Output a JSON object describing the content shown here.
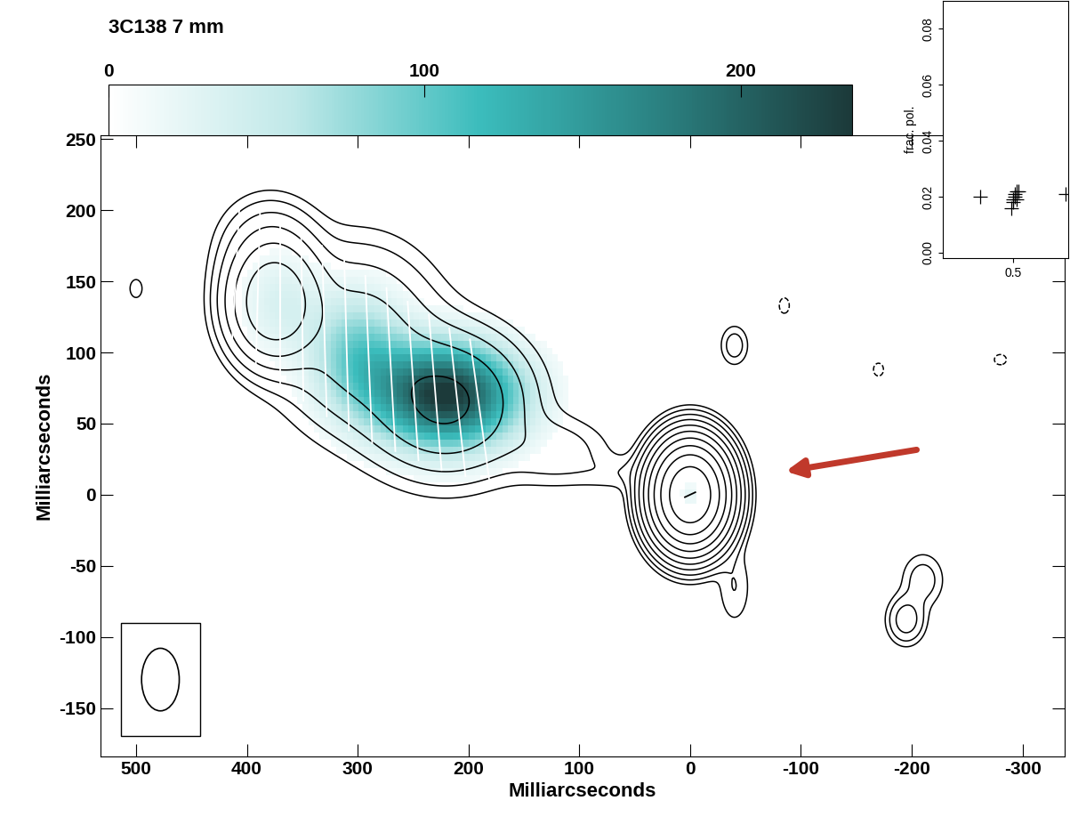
{
  "chart_data": [
    {
      "type": "contour",
      "title": "3C138 7 mm",
      "xlabel": "Milliarcseconds",
      "ylabel": "Milliarcseconds",
      "xlim": [
        532,
        -338
      ],
      "ylim": [
        -184,
        253
      ],
      "xticks": [
        500,
        400,
        300,
        200,
        100,
        0,
        -100,
        -200,
        -300
      ],
      "yticks": [
        -150,
        -100,
        -50,
        0,
        50,
        100,
        150,
        200,
        250
      ],
      "components": [
        {
          "x": 0,
          "y": 0,
          "sigma_x": 16,
          "sigma_y": 17,
          "peak": 1000
        },
        {
          "x": -40,
          "y": -65,
          "sigma_x": 10,
          "sigma_y": 18,
          "peak": 2
        },
        {
          "x": 375,
          "y": 135,
          "sigma_x": 22,
          "sigma_y": 22,
          "peak": 60
        },
        {
          "x": 300,
          "y": 110,
          "sigma_x": 40,
          "sigma_y": 35,
          "peak": 12
        },
        {
          "x": 220,
          "y": 65,
          "sigma_x": 40,
          "sigma_y": 28,
          "peak": 18
        },
        {
          "x": 380,
          "y": 175,
          "sigma_x": 25,
          "sigma_y": 20,
          "peak": 6
        },
        {
          "x": 120,
          "y": 30,
          "sigma_x": 30,
          "sigma_y": 15,
          "peak": 3
        },
        {
          "x": 60,
          "y": 15,
          "sigma_x": 25,
          "sigma_y": 8,
          "peak": 1.5
        },
        {
          "x": -40,
          "y": 105,
          "sigma_x": 8,
          "sigma_y": 9,
          "peak": 3
        },
        {
          "x": 500,
          "y": 145,
          "sigma_x": 6,
          "sigma_y": 7,
          "peak": 1.5
        },
        {
          "x": -195,
          "y": -88,
          "sigma_x": 10,
          "sigma_y": 10,
          "peak": 6
        },
        {
          "x": -210,
          "y": -60,
          "sigma_x": 12,
          "sigma_y": 12,
          "peak": 3
        },
        {
          "x": -85,
          "y": 133,
          "sigma_x": 5,
          "sigma_y": 6,
          "peak": -1.5
        },
        {
          "x": -170,
          "y": 88,
          "sigma_x": 5,
          "sigma_y": 5,
          "peak": -1.5
        },
        {
          "x": -280,
          "y": 95,
          "sigma_x": 6,
          "sigma_y": 4,
          "peak": -1.5
        }
      ],
      "contour_levels": [
        -1,
        1,
        2,
        4,
        8,
        16,
        32,
        64,
        128,
        256,
        512
      ],
      "polarized_components": [
        {
          "x": 220,
          "y": 70,
          "sigma_x": 45,
          "sigma_y": 25,
          "peak": 240
        },
        {
          "x": 300,
          "y": 100,
          "sigma_x": 30,
          "sigma_y": 30,
          "peak": 90
        },
        {
          "x": 370,
          "y": 135,
          "sigma_x": 25,
          "sigma_y": 25,
          "peak": 35
        },
        {
          "x": 0,
          "y": 0,
          "sigma_x": 6,
          "sigma_y": 6,
          "peak": 25
        }
      ],
      "polarized_cutoff": 12,
      "colorbar_lim": [
        0,
        235
      ],
      "colorbar_ticks": [
        0,
        100,
        200
      ],
      "vectors": {
        "x": [
          190,
          210,
          230,
          250,
          270,
          290,
          310,
          330,
          350,
          370,
          390,
          410,
          0
        ],
        "y": [
          60,
          65,
          72,
          80,
          88,
          95,
          105,
          115,
          125,
          135,
          145,
          155,
          0
        ],
        "angle": [
          80,
          82,
          84,
          85,
          86,
          87,
          88,
          88,
          89,
          90,
          92,
          94,
          160
        ],
        "length": [
          100,
          105,
          110,
          112,
          115,
          118,
          120,
          120,
          118,
          115,
          110,
          100,
          10
        ]
      },
      "beam": {
        "x": 478,
        "y": -130,
        "width": 34,
        "height": 44
      }
    },
    {
      "type": "scatter",
      "ylabel": "frac. pol.",
      "marker": "plus",
      "x": [
        0.33,
        0.49,
        0.5,
        0.5,
        0.51,
        0.51,
        0.52,
        0.52,
        0.53,
        0.78
      ],
      "y": [
        0.02,
        0.016,
        0.018,
        0.019,
        0.02,
        0.021,
        0.022,
        0.019,
        0.022,
        0.021
      ],
      "xlim": [
        0.13,
        0.79
      ],
      "ylim": [
        -0.002,
        0.09
      ],
      "xticks": [
        0.5
      ],
      "yticks": [
        {
          "value": 0,
          "label": "0.00"
        },
        0.02,
        0.04,
        0.06,
        0.08
      ]
    }
  ]
}
